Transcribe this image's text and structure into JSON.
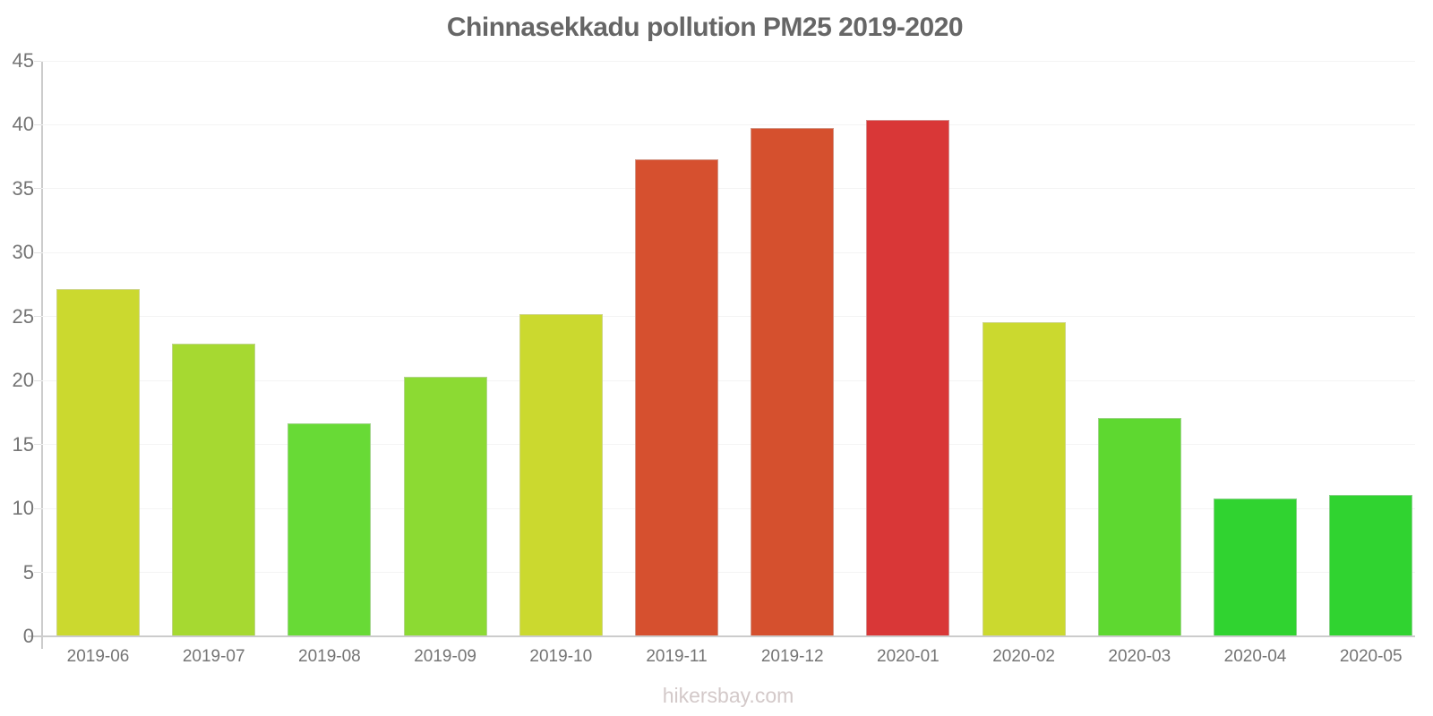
{
  "header": {
    "title": "Chinnasekkadu pollution PM25 2019-2020"
  },
  "footer": {
    "watermark": "hikersbay.com"
  },
  "chart_data": {
    "type": "bar",
    "title": "Chinnasekkadu pollution PM25 2019-2020",
    "categories": [
      "2019-06",
      "2019-07",
      "2019-08",
      "2019-09",
      "2019-10",
      "2019-11",
      "2019-12",
      "2020-01",
      "2020-02",
      "2020-03",
      "2020-04",
      "2020-05"
    ],
    "values": [
      27.1,
      22.8,
      16.6,
      20.2,
      25.1,
      37.2,
      39.7,
      40.3,
      24.5,
      17.0,
      10.7,
      11.0
    ],
    "bar_colors": [
      "#cbd92f",
      "#a6d931",
      "#68da36",
      "#8cda33",
      "#cbd92f",
      "#d6502f",
      "#d5502e",
      "#d93737",
      "#cbd92f",
      "#5ed830",
      "#30d330",
      "#30d330"
    ],
    "xlabel": "",
    "ylabel": "",
    "ylim": [
      0,
      45
    ],
    "ytick_step": 5,
    "yticks": [
      0,
      5,
      10,
      15,
      20,
      25,
      30,
      35,
      40,
      45
    ],
    "grid": true,
    "legend": false,
    "colors": {
      "axis": "#cccccc",
      "grid": "#f4f4f4",
      "tick_labels": "#757575",
      "title": "#666666",
      "watermark": "#d3c9c9"
    }
  }
}
